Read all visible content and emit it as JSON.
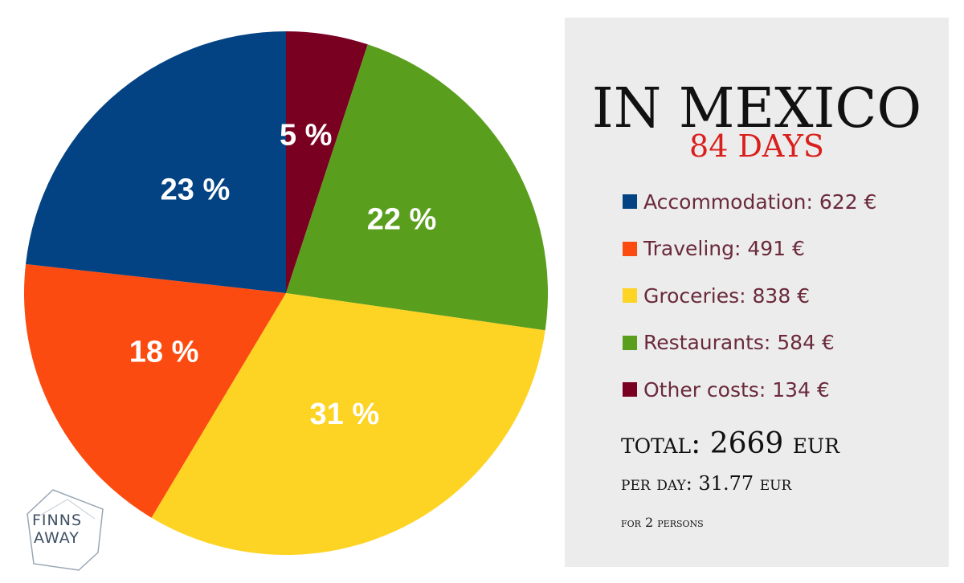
{
  "chart_data": {
    "type": "pie",
    "slices": [
      {
        "name": "Other costs",
        "percent": 5,
        "label": "5 %",
        "color": "#7a0022"
      },
      {
        "name": "Restaurants",
        "percent": 22,
        "label": "22 %",
        "color": "#5a9e1e"
      },
      {
        "name": "Groceries",
        "percent": 31,
        "label": "31 %",
        "color": "#fdd324"
      },
      {
        "name": "Traveling",
        "percent": 18,
        "label": "18 %",
        "color": "#fc4b10"
      },
      {
        "name": "Accommodation",
        "percent": 23,
        "label": "23 %",
        "color": "#034383"
      }
    ],
    "legend": [
      {
        "label": "Accommodation: 622  €",
        "color": "#034383"
      },
      {
        "label": "Traveling: 491  €",
        "color": "#fc4b10"
      },
      {
        "label": "Groceries: 838  €",
        "color": "#fdd324"
      },
      {
        "label": "Restaurants: 584  €",
        "color": "#5a9e1e"
      },
      {
        "label": "Other costs: 134  €",
        "color": "#7a0022"
      }
    ]
  },
  "panel": {
    "title": "IN MEXICO",
    "subtitle": "84 DAYS",
    "total": "total: 2669 eur",
    "per_day": "per day: 31.77 eur",
    "persons": "for 2 persons"
  },
  "logo": {
    "line1": "FINNS",
    "line2": "AWAY"
  },
  "colors": {
    "panel_background": "#ececec",
    "subtitle": "#d9201c",
    "legend_text": "#6a2a3c"
  }
}
